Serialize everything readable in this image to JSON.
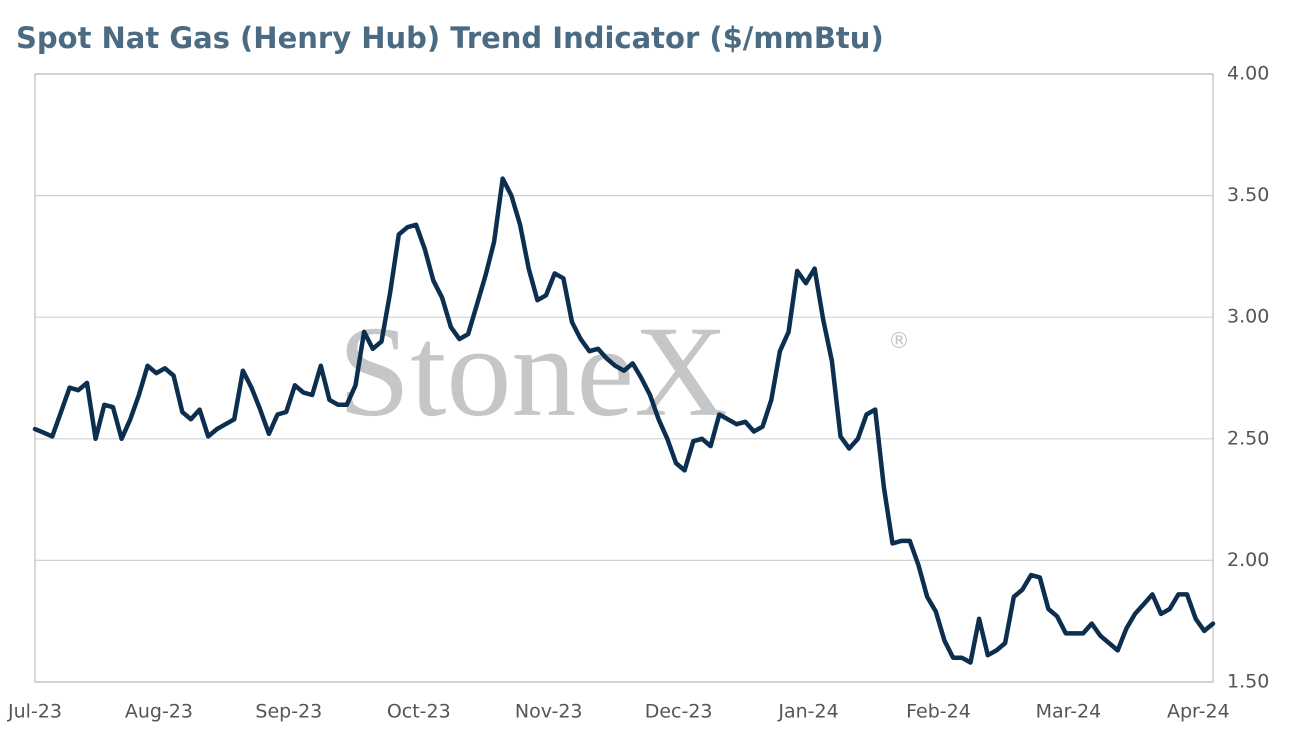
{
  "chart_data": {
    "type": "line",
    "title": "Spot Nat Gas (Henry Hub) Trend Indicator ($/mmBtu)",
    "watermark": {
      "text": "StoneX",
      "symbol": "®"
    },
    "categories": [
      "Jul-23",
      null,
      null,
      null,
      null,
      null,
      null,
      null,
      null,
      null,
      null,
      null,
      null,
      null,
      null,
      "Aug-23",
      null,
      null,
      null,
      null,
      null,
      null,
      null,
      null,
      null,
      null,
      null,
      null,
      null,
      null,
      "Sep-23",
      null,
      null,
      null,
      null,
      null,
      null,
      null,
      null,
      null,
      null,
      null,
      null,
      null,
      null,
      "Oct-23",
      null,
      null,
      null,
      null,
      null,
      null,
      null,
      null,
      null,
      null,
      null,
      null,
      null,
      null,
      "Nov-23",
      null,
      null,
      null,
      null,
      null,
      null,
      null,
      null,
      null,
      null,
      null,
      null,
      null,
      null,
      "Dec-23",
      null,
      null,
      null,
      null,
      null,
      null,
      null,
      null,
      null,
      null,
      null,
      null,
      null,
      null,
      "Jan-24",
      null,
      null,
      null,
      null,
      null,
      null,
      null,
      null,
      null,
      null,
      null,
      null,
      null,
      null,
      "Feb-24",
      null,
      null,
      null,
      null,
      null,
      null,
      null,
      null,
      null,
      null,
      null,
      null,
      null,
      null,
      "Mar-24",
      null,
      null,
      null,
      null,
      null,
      null,
      null,
      null,
      null,
      null,
      null,
      null,
      null,
      null,
      "Apr-24",
      null
    ],
    "series": [
      {
        "name": "Spot Nat Gas (Henry Hub)",
        "color": "#0d2f4f",
        "values": [
          2.54,
          2.525,
          2.51,
          2.61,
          2.71,
          2.7,
          2.73,
          2.5,
          2.64,
          2.63,
          2.5,
          2.58,
          2.68,
          2.8,
          2.77,
          2.79,
          2.76,
          2.61,
          2.58,
          2.62,
          2.51,
          2.54,
          2.56,
          2.58,
          2.78,
          2.71,
          2.62,
          2.52,
          2.6,
          2.61,
          2.72,
          2.69,
          2.68,
          2.8,
          2.66,
          2.64,
          2.64,
          2.72,
          2.94,
          2.87,
          2.9,
          3.1,
          3.34,
          3.37,
          3.38,
          3.28,
          3.15,
          3.08,
          2.96,
          2.91,
          2.93,
          3.05,
          3.17,
          3.31,
          3.57,
          3.5,
          3.38,
          3.2,
          3.07,
          3.09,
          3.18,
          3.16,
          2.98,
          2.91,
          2.86,
          2.87,
          2.83,
          2.8,
          2.78,
          2.81,
          2.75,
          2.68,
          2.58,
          2.5,
          2.4,
          2.37,
          2.49,
          2.5,
          2.47,
          2.6,
          2.58,
          2.56,
          2.57,
          2.53,
          2.55,
          2.66,
          2.86,
          2.94,
          3.19,
          3.14,
          3.2,
          2.99,
          2.82,
          2.51,
          2.46,
          2.5,
          2.6,
          2.62,
          2.3,
          2.07,
          2.08,
          2.08,
          1.98,
          1.85,
          1.79,
          1.67,
          1.6,
          1.6,
          1.58,
          1.76,
          1.61,
          1.63,
          1.66,
          1.85,
          1.88,
          1.94,
          1.93,
          1.8,
          1.77,
          1.7,
          1.7,
          1.7,
          1.74,
          1.69,
          1.66,
          1.63,
          1.72,
          1.78,
          1.82,
          1.86,
          1.78,
          1.8,
          1.86,
          1.86,
          1.76,
          1.71,
          1.74
        ]
      }
    ],
    "ylim": [
      1.5,
      4
    ],
    "yticks": [
      {
        "value": 1.5,
        "label": "1.50"
      },
      {
        "value": 2,
        "label": "2.00"
      },
      {
        "value": 2.5,
        "label": "2.50"
      },
      {
        "value": 3,
        "label": "3.00"
      },
      {
        "value": 3.5,
        "label": "3.50"
      },
      {
        "value": 4,
        "label": "4.00"
      }
    ],
    "grid": true
  }
}
